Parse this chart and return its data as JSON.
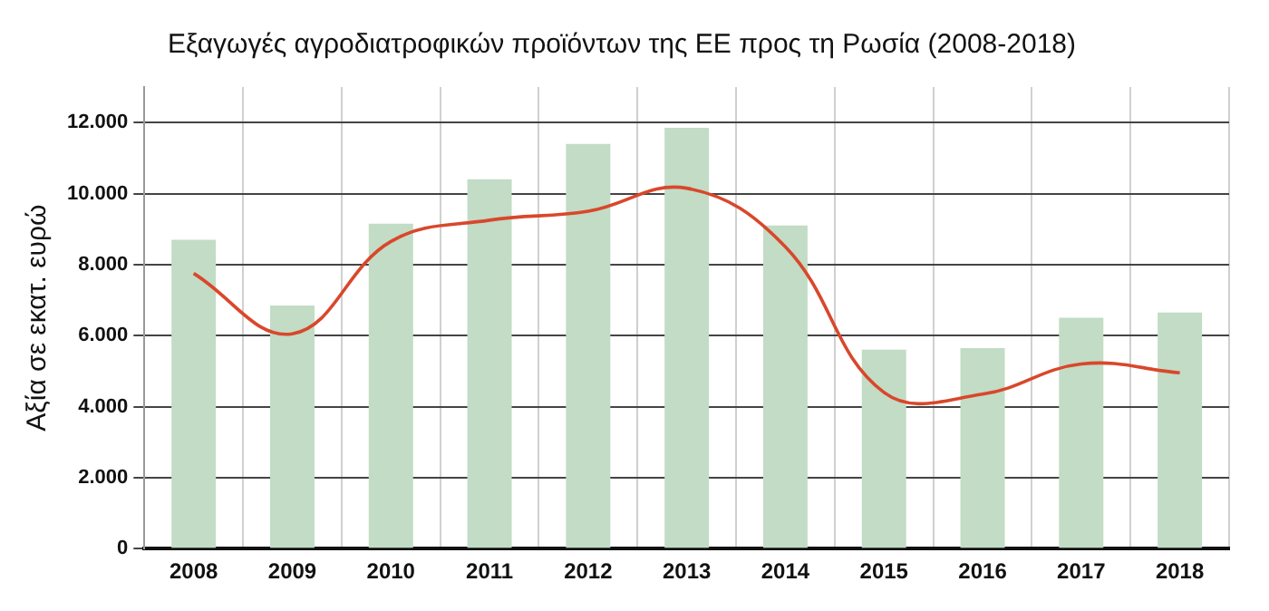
{
  "chart_data": {
    "type": "bar",
    "title": "Εξαγωγές αγροδιατροφικών προϊόντων της ΕΕ προς τη Ρωσία (2008-2018)",
    "ylabel": "Αξία σε εκατ. ευρώ",
    "categories": [
      "2008",
      "2009",
      "2010",
      "2011",
      "2012",
      "2013",
      "2014",
      "2015",
      "2016",
      "2017",
      "2018"
    ],
    "series": [
      {
        "color": "#c2dcc5",
        "values": [
          8700,
          6850,
          9150,
          10400,
          11400,
          11850,
          9100,
          5600,
          5650,
          6500,
          6650
        ]
      },
      {
        "type": "line",
        "color": "#d9472b",
        "values": [
          7750,
          6050,
          8650,
          9250,
          9500,
          10150,
          8500,
          4400,
          4350,
          5200,
          4950
        ]
      }
    ],
    "ylim": [
      0,
      13000
    ],
    "yticks": [
      0,
      {
        "value": 2000,
        "label": "2.000"
      },
      {
        "value": 4000,
        "label": "4.000"
      },
      {
        "value": 6000,
        "label": "6.000"
      },
      {
        "value": 8000,
        "label": "8.000"
      },
      {
        "value": 10000,
        "label": "10.000"
      },
      {
        "value": 12000,
        "label": "12.000"
      }
    ],
    "grid": true,
    "legend": false,
    "marker": "none",
    "line_style": "solid"
  }
}
